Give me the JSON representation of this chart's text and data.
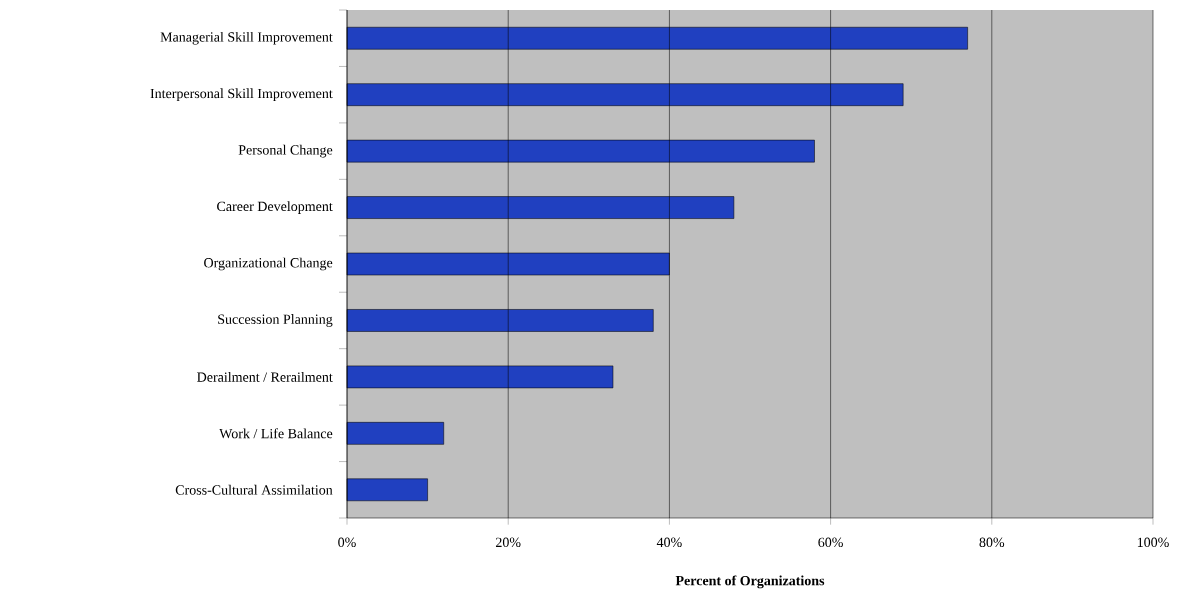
{
  "chart_data": {
    "type": "bar",
    "orientation": "horizontal",
    "xlabel": "Percent of Organizations",
    "categories": [
      "Managerial Skill Improvement",
      "Interpersonal Skill Improvement",
      "Personal Change",
      "Career Development",
      "Organizational Change",
      "Succession Planning",
      "Derailment / Rerailment",
      "Work / Life Balance",
      "Cross-Cultural Assimilation"
    ],
    "values": [
      77,
      69,
      58,
      48,
      40,
      38,
      33,
      12,
      10
    ],
    "color": "#2040c0",
    "xlim": [
      0,
      100
    ],
    "xticks": [
      {
        "value": 0,
        "label": "0%"
      },
      {
        "value": 20,
        "label": "20%"
      },
      {
        "value": 40,
        "label": "40%"
      },
      {
        "value": 60,
        "label": "60%"
      },
      {
        "value": 80,
        "label": "80%"
      },
      {
        "value": 100,
        "label": "100%"
      }
    ],
    "grid": "x"
  }
}
